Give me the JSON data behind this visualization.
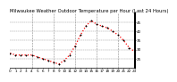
{
  "title": "Milwaukee Weather Outdoor Temperature per Hour (Last 24 Hours)",
  "hours": [
    0,
    1,
    2,
    3,
    4,
    5,
    6,
    7,
    8,
    9,
    10,
    11,
    12,
    13,
    14,
    15,
    16,
    17,
    18,
    19,
    20,
    21,
    22,
    23
  ],
  "temps": [
    28,
    27,
    27,
    27,
    27,
    26,
    25,
    24,
    23,
    22,
    24,
    27,
    32,
    38,
    43,
    46,
    44,
    43,
    42,
    40,
    38,
    35,
    31,
    29
  ],
  "line_color": "#ff0000",
  "marker_color": "#000000",
  "bg_color": "#ffffff",
  "grid_color": "#888888",
  "ylim": [
    20,
    50
  ],
  "yticks": [
    25,
    30,
    35,
    40,
    45
  ],
  "ytick_labels": [
    "25",
    "30",
    "35",
    "40",
    "45"
  ],
  "vgrid_hours": [
    4,
    8,
    12,
    16,
    20
  ],
  "title_fontsize": 3.8,
  "tick_fontsize": 3.0
}
